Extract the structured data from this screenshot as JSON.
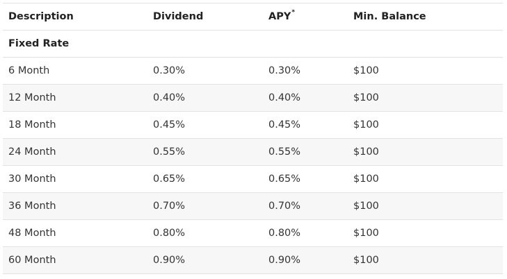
{
  "table": {
    "headers": {
      "description": "Description",
      "dividend": "Dividend",
      "apy": "APY",
      "apy_mark": "*",
      "min_balance": "Min. Balance"
    },
    "section_label": "Fixed Rate",
    "rows": [
      {
        "description": "6 Month",
        "dividend": "0.30%",
        "apy": "0.30%",
        "min_balance": "$100"
      },
      {
        "description": "12 Month",
        "dividend": "0.40%",
        "apy": "0.40%",
        "min_balance": "$100"
      },
      {
        "description": "18 Month",
        "dividend": "0.45%",
        "apy": "0.45%",
        "min_balance": "$100"
      },
      {
        "description": "24 Month",
        "dividend": "0.55%",
        "apy": "0.55%",
        "min_balance": "$100"
      },
      {
        "description": "30 Month",
        "dividend": "0.65%",
        "apy": "0.65%",
        "min_balance": "$100"
      },
      {
        "description": "36 Month",
        "dividend": "0.70%",
        "apy": "0.70%",
        "min_balance": "$100"
      },
      {
        "description": "48 Month",
        "dividend": "0.80%",
        "apy": "0.80%",
        "min_balance": "$100"
      },
      {
        "description": "60 Month",
        "dividend": "0.90%",
        "apy": "0.90%",
        "min_balance": "$100"
      }
    ]
  },
  "colors": {
    "row_shade": "#f7f7f7",
    "border": "#e2e2e2",
    "text": "#333333"
  }
}
